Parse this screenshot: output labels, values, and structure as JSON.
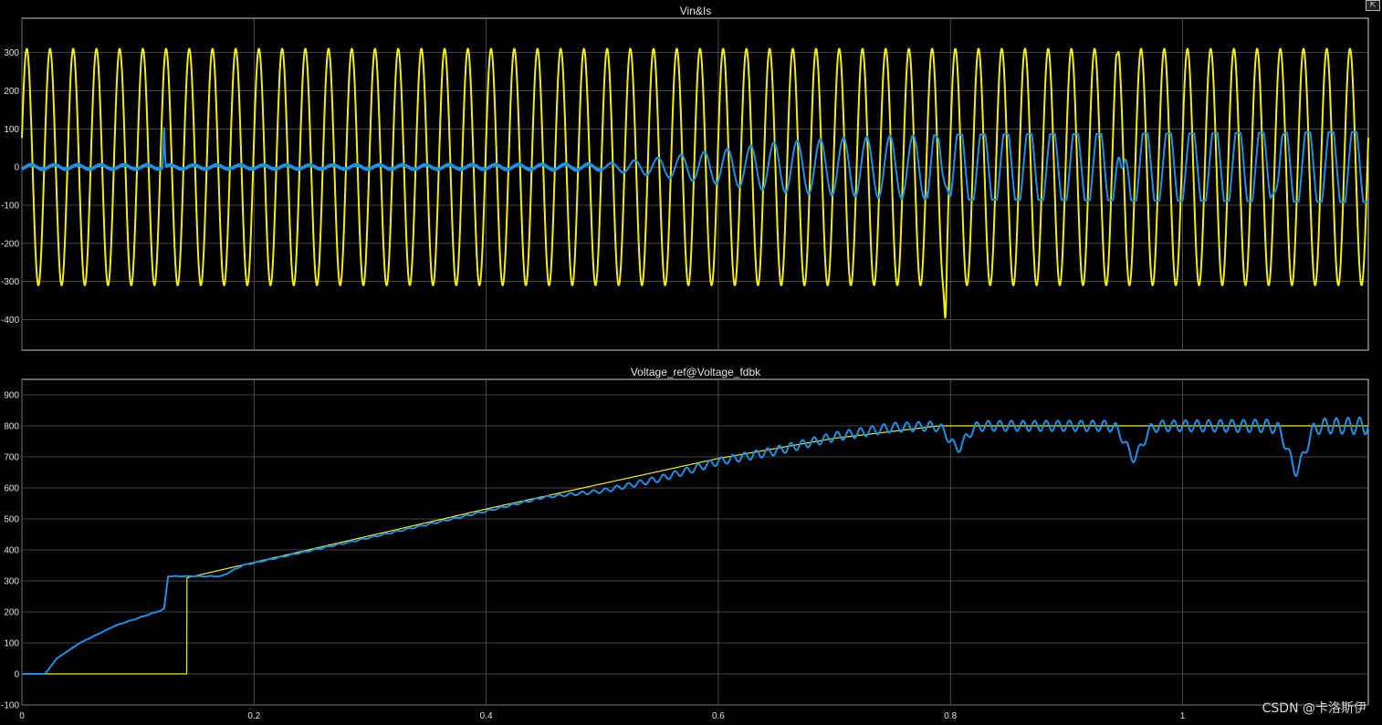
{
  "window": {
    "dock_icon": "undock-icon",
    "dock_glyph": "⇱"
  },
  "watermark": "CSDN @卡洛斯伊",
  "colors": {
    "background": "#000000",
    "yellow": "#f2ee12",
    "blue": "#1e90e6",
    "grid": "#5a5a5a",
    "axes": "#cfcfcf"
  },
  "chart_data": [
    {
      "type": "line",
      "title": "Vin&Is",
      "xlim": [
        0,
        1.16
      ],
      "ylim": [
        -480,
        390
      ],
      "yticks": [
        300,
        200,
        100,
        0,
        -100,
        -200,
        -300,
        -400
      ],
      "xticks": [
        0,
        0.2,
        0.4,
        0.6,
        0.8,
        1
      ],
      "show_xtick_labels": false,
      "grid": true,
      "series": [
        {
          "color": "#f2ee12",
          "kind": "sine",
          "amplitude": 310,
          "frequency_hz": 50,
          "anomalies": [
            {
              "x": 0.7955,
              "y": -395
            },
            {
              "x": 0.9435,
              "y": 295
            }
          ]
        },
        {
          "color": "#1e90e6",
          "kind": "current",
          "envelope": [
            [
              0,
              6
            ],
            [
              0.2,
              5
            ],
            [
              0.4,
              6
            ],
            [
              0.5,
              8
            ],
            [
              0.55,
              25
            ],
            [
              0.6,
              45
            ],
            [
              0.65,
              65
            ],
            [
              0.7,
              75
            ],
            [
              0.75,
              82
            ],
            [
              0.8,
              85
            ],
            [
              1.0,
              88
            ],
            [
              1.16,
              92
            ]
          ],
          "spikes": [
            {
              "x": 0.1225,
              "y": 100
            }
          ],
          "events": [
            {
              "x": 0.795,
              "y": -35
            },
            {
              "x": 0.948,
              "y": -95
            },
            {
              "x": 1.08,
              "y": -70
            }
          ]
        }
      ]
    },
    {
      "type": "line",
      "title": "Voltage_ref@Voltage_fdbk",
      "xlim": [
        0,
        1.16
      ],
      "ylim": [
        -100,
        950
      ],
      "yticks": [
        900,
        800,
        700,
        600,
        500,
        400,
        300,
        200,
        100,
        0,
        -100
      ],
      "xticks": [
        0,
        0.2,
        0.4,
        0.6,
        0.8,
        1
      ],
      "xtick_labels": [
        "0",
        "0.2",
        "0.4",
        "0.6",
        "0.8",
        "1"
      ],
      "grid": true,
      "series": [
        {
          "color": "#f2ee12",
          "kind": "reference",
          "points": [
            [
              0,
              0
            ],
            [
              0.142,
              0
            ],
            [
              0.142,
              310
            ],
            [
              0.4,
              532
            ],
            [
              0.6,
              695
            ],
            [
              0.7,
              760
            ],
            [
              0.79,
              800
            ],
            [
              1.16,
              800
            ]
          ]
        },
        {
          "color": "#1e90e6",
          "kind": "feedback",
          "base": [
            [
              0,
              0
            ],
            [
              0.02,
              0
            ],
            [
              0.03,
              50
            ],
            [
              0.05,
              100
            ],
            [
              0.08,
              155
            ],
            [
              0.12,
              205
            ],
            [
              0.1225,
              210
            ],
            [
              0.126,
              315
            ],
            [
              0.172,
              315
            ],
            [
              0.19,
              350
            ],
            [
              0.3,
              440
            ],
            [
              0.4,
              525
            ],
            [
              0.45,
              570
            ],
            [
              0.5,
              590
            ],
            [
              0.55,
              630
            ],
            [
              0.6,
              685
            ],
            [
              0.65,
              720
            ],
            [
              0.7,
              765
            ],
            [
              0.75,
              795
            ],
            [
              0.79,
              800
            ],
            [
              1.16,
              800
            ]
          ],
          "ripple": [
            [
              0,
              0
            ],
            [
              0.45,
              3
            ],
            [
              0.5,
              6
            ],
            [
              0.55,
              10
            ],
            [
              0.65,
              14
            ],
            [
              0.75,
              15
            ],
            [
              0.79,
              15
            ],
            [
              0.8,
              16
            ],
            [
              1.0,
              18
            ],
            [
              1.1,
              22
            ],
            [
              1.16,
              28
            ]
          ],
          "dips": [
            {
              "x": 0.798,
              "y": 730
            },
            {
              "x": 0.95,
              "y": 700
            },
            {
              "x": 1.09,
              "y": 660
            }
          ]
        }
      ]
    }
  ]
}
